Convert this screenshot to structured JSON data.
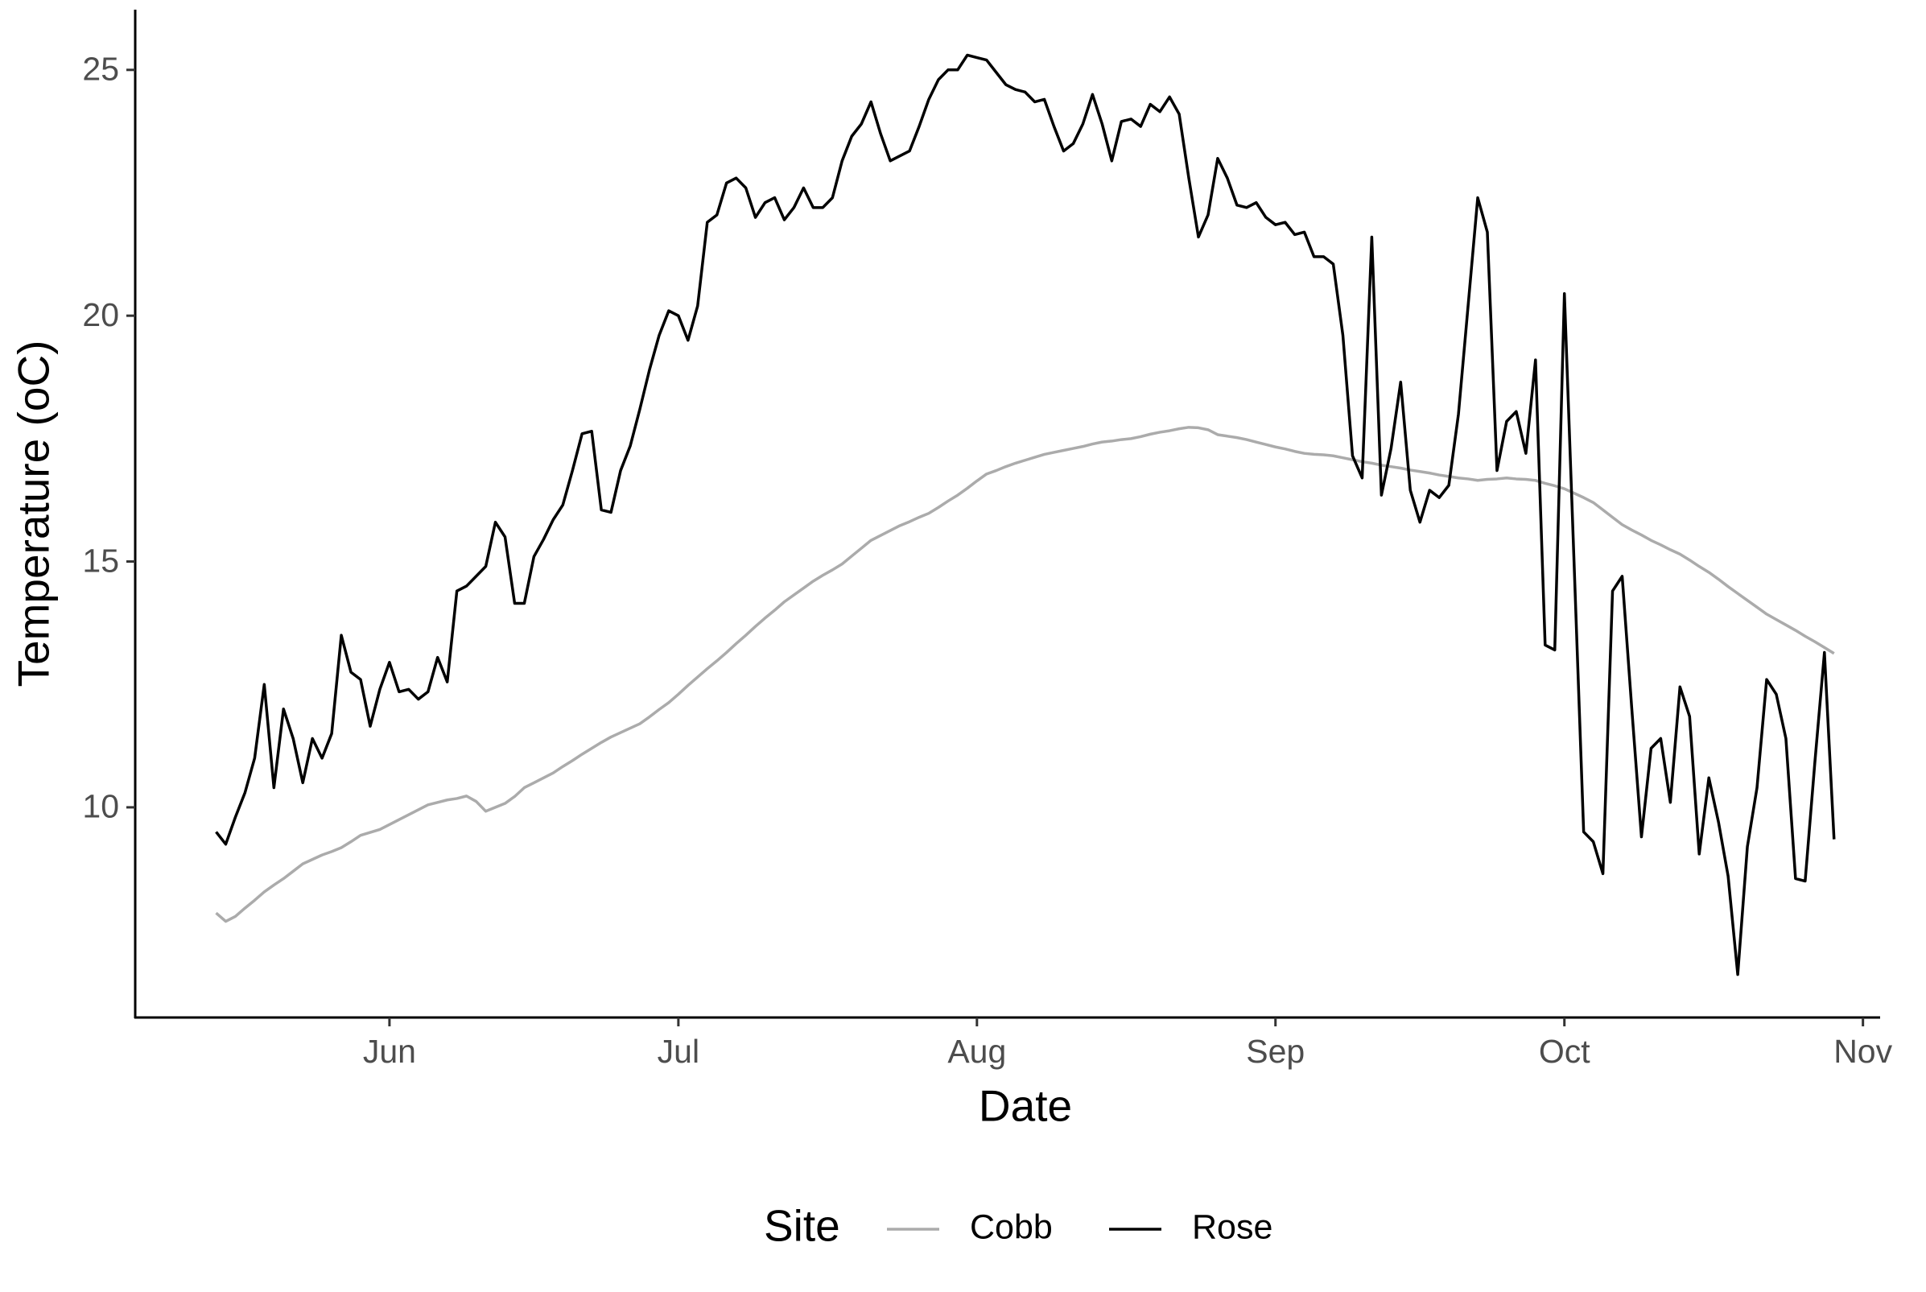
{
  "chart_data": {
    "type": "line",
    "x_label": "Date",
    "y_label": "Temperature (oC)",
    "legend_title": "Site",
    "legend_position": "bottom",
    "xlim": [
      4.6,
      185.7
    ],
    "ylim": [
      5.725,
      26.225
    ],
    "xticks": [
      {
        "value": 31,
        "label": "Jun"
      },
      {
        "value": 61,
        "label": "Jul"
      },
      {
        "value": 92,
        "label": "Aug"
      },
      {
        "value": 123,
        "label": "Sep"
      },
      {
        "value": 153,
        "label": "Oct"
      },
      {
        "value": 184,
        "label": "Nov"
      }
    ],
    "yticks": [
      10,
      15,
      20,
      25
    ],
    "grid": false,
    "x": [
      13,
      14,
      15,
      16,
      17,
      18,
      19,
      20,
      21,
      22,
      23,
      24,
      25,
      26,
      27,
      28,
      29,
      30,
      31,
      32,
      33,
      34,
      35,
      36,
      37,
      38,
      39,
      40,
      41,
      42,
      43,
      44,
      45,
      46,
      47,
      48,
      49,
      50,
      51,
      52,
      53,
      54,
      55,
      56,
      57,
      58,
      59,
      60,
      61,
      62,
      63,
      64,
      65,
      66,
      67,
      68,
      69,
      70,
      71,
      72,
      73,
      74,
      75,
      76,
      77,
      78,
      79,
      80,
      81,
      82,
      83,
      84,
      85,
      86,
      87,
      88,
      89,
      90,
      91,
      92,
      93,
      94,
      95,
      96,
      97,
      98,
      99,
      100,
      101,
      102,
      103,
      104,
      105,
      106,
      107,
      108,
      109,
      110,
      111,
      112,
      113,
      114,
      115,
      116,
      117,
      118,
      119,
      120,
      121,
      122,
      123,
      124,
      125,
      126,
      127,
      128,
      129,
      130,
      131,
      132,
      133,
      134,
      135,
      136,
      137,
      138,
      139,
      140,
      141,
      142,
      143,
      144,
      145,
      146,
      147,
      148,
      149,
      150,
      151,
      152,
      153,
      154,
      155,
      156,
      157,
      158,
      159,
      160,
      161,
      162,
      163,
      164,
      165,
      166,
      167,
      168,
      169,
      170,
      171,
      172,
      173,
      174,
      175,
      176,
      177,
      178,
      179,
      180,
      181
    ],
    "series": [
      {
        "name": "Cobb",
        "color": "#ababab",
        "values": [
          7.85,
          7.68,
          7.78,
          7.95,
          8.11,
          8.28,
          8.42,
          8.55,
          8.7,
          8.85,
          8.94,
          9.03,
          9.1,
          9.18,
          9.3,
          9.43,
          9.49,
          9.55,
          9.65,
          9.75,
          9.85,
          9.95,
          10.05,
          10.1,
          10.15,
          10.18,
          10.23,
          10.12,
          9.92,
          10.0,
          10.08,
          10.22,
          10.4,
          10.5,
          10.6,
          10.7,
          10.83,
          10.95,
          11.08,
          11.2,
          11.32,
          11.43,
          11.52,
          11.61,
          11.7,
          11.84,
          11.99,
          12.13,
          12.3,
          12.48,
          12.65,
          12.82,
          12.98,
          13.15,
          13.33,
          13.5,
          13.68,
          13.85,
          14.01,
          14.18,
          14.32,
          14.46,
          14.6,
          14.72,
          14.83,
          14.95,
          15.11,
          15.27,
          15.43,
          15.53,
          15.63,
          15.73,
          15.81,
          15.9,
          15.98,
          16.1,
          16.23,
          16.35,
          16.49,
          16.64,
          16.78,
          16.85,
          16.93,
          17.0,
          17.06,
          17.12,
          17.18,
          17.22,
          17.26,
          17.3,
          17.34,
          17.39,
          17.43,
          17.45,
          17.48,
          17.5,
          17.54,
          17.59,
          17.63,
          17.66,
          17.7,
          17.73,
          17.72,
          17.68,
          17.58,
          17.55,
          17.52,
          17.48,
          17.43,
          17.38,
          17.33,
          17.29,
          17.24,
          17.2,
          17.18,
          17.17,
          17.15,
          17.11,
          17.07,
          17.03,
          17.0,
          16.96,
          16.93,
          16.9,
          16.86,
          16.83,
          16.8,
          16.76,
          16.73,
          16.7,
          16.68,
          16.65,
          16.67,
          16.68,
          16.7,
          16.68,
          16.67,
          16.65,
          16.59,
          16.54,
          16.48,
          16.39,
          16.3,
          16.2,
          16.05,
          15.9,
          15.75,
          15.64,
          15.54,
          15.43,
          15.34,
          15.24,
          15.15,
          15.03,
          14.9,
          14.78,
          14.64,
          14.49,
          14.35,
          14.21,
          14.07,
          13.93,
          13.82,
          13.71,
          13.6,
          13.48,
          13.37,
          13.25,
          13.13
        ]
      },
      {
        "name": "Rose",
        "color": "#000000",
        "values": [
          9.5,
          9.25,
          9.8,
          10.3,
          11.0,
          12.5,
          10.4,
          12.0,
          11.4,
          10.5,
          11.4,
          11.0,
          11.5,
          13.5,
          12.75,
          12.6,
          11.65,
          12.4,
          12.95,
          12.35,
          12.4,
          12.2,
          12.35,
          13.05,
          12.55,
          14.4,
          14.5,
          14.7,
          14.9,
          15.8,
          15.5,
          14.15,
          14.15,
          15.1,
          15.45,
          15.85,
          16.15,
          16.85,
          17.6,
          17.65,
          16.05,
          16.0,
          16.85,
          17.35,
          18.1,
          18.9,
          19.6,
          20.1,
          20.0,
          19.5,
          20.2,
          21.9,
          22.05,
          22.7,
          22.8,
          22.6,
          22.0,
          22.3,
          22.4,
          21.95,
          22.2,
          22.6,
          22.2,
          22.2,
          22.4,
          23.15,
          23.65,
          23.9,
          24.35,
          23.7,
          23.15,
          23.25,
          23.35,
          23.85,
          24.4,
          24.8,
          25.0,
          25.0,
          25.3,
          25.25,
          25.2,
          24.95,
          24.7,
          24.6,
          24.55,
          24.35,
          24.4,
          23.85,
          23.35,
          23.5,
          23.9,
          24.5,
          23.9,
          23.15,
          23.95,
          24.0,
          23.85,
          24.3,
          24.15,
          24.45,
          24.1,
          22.8,
          21.6,
          22.05,
          23.2,
          22.8,
          22.25,
          22.2,
          22.3,
          22.0,
          21.85,
          21.9,
          21.65,
          21.7,
          21.2,
          21.2,
          21.05,
          19.6,
          17.15,
          16.7,
          21.6,
          16.35,
          17.3,
          18.65,
          16.45,
          15.8,
          16.45,
          16.3,
          16.55,
          18.0,
          20.2,
          22.4,
          21.7,
          16.85,
          17.85,
          18.05,
          17.2,
          19.1,
          13.3,
          13.2,
          20.45,
          15.0,
          9.5,
          9.3,
          8.65,
          14.4,
          14.7,
          12.0,
          9.4,
          11.2,
          11.4,
          10.1,
          12.45,
          11.85,
          9.05,
          10.6,
          9.7,
          8.6,
          6.6,
          9.2,
          10.4,
          12.6,
          12.3,
          11.4,
          8.55,
          8.5,
          10.9,
          13.15,
          9.35
        ]
      }
    ]
  }
}
